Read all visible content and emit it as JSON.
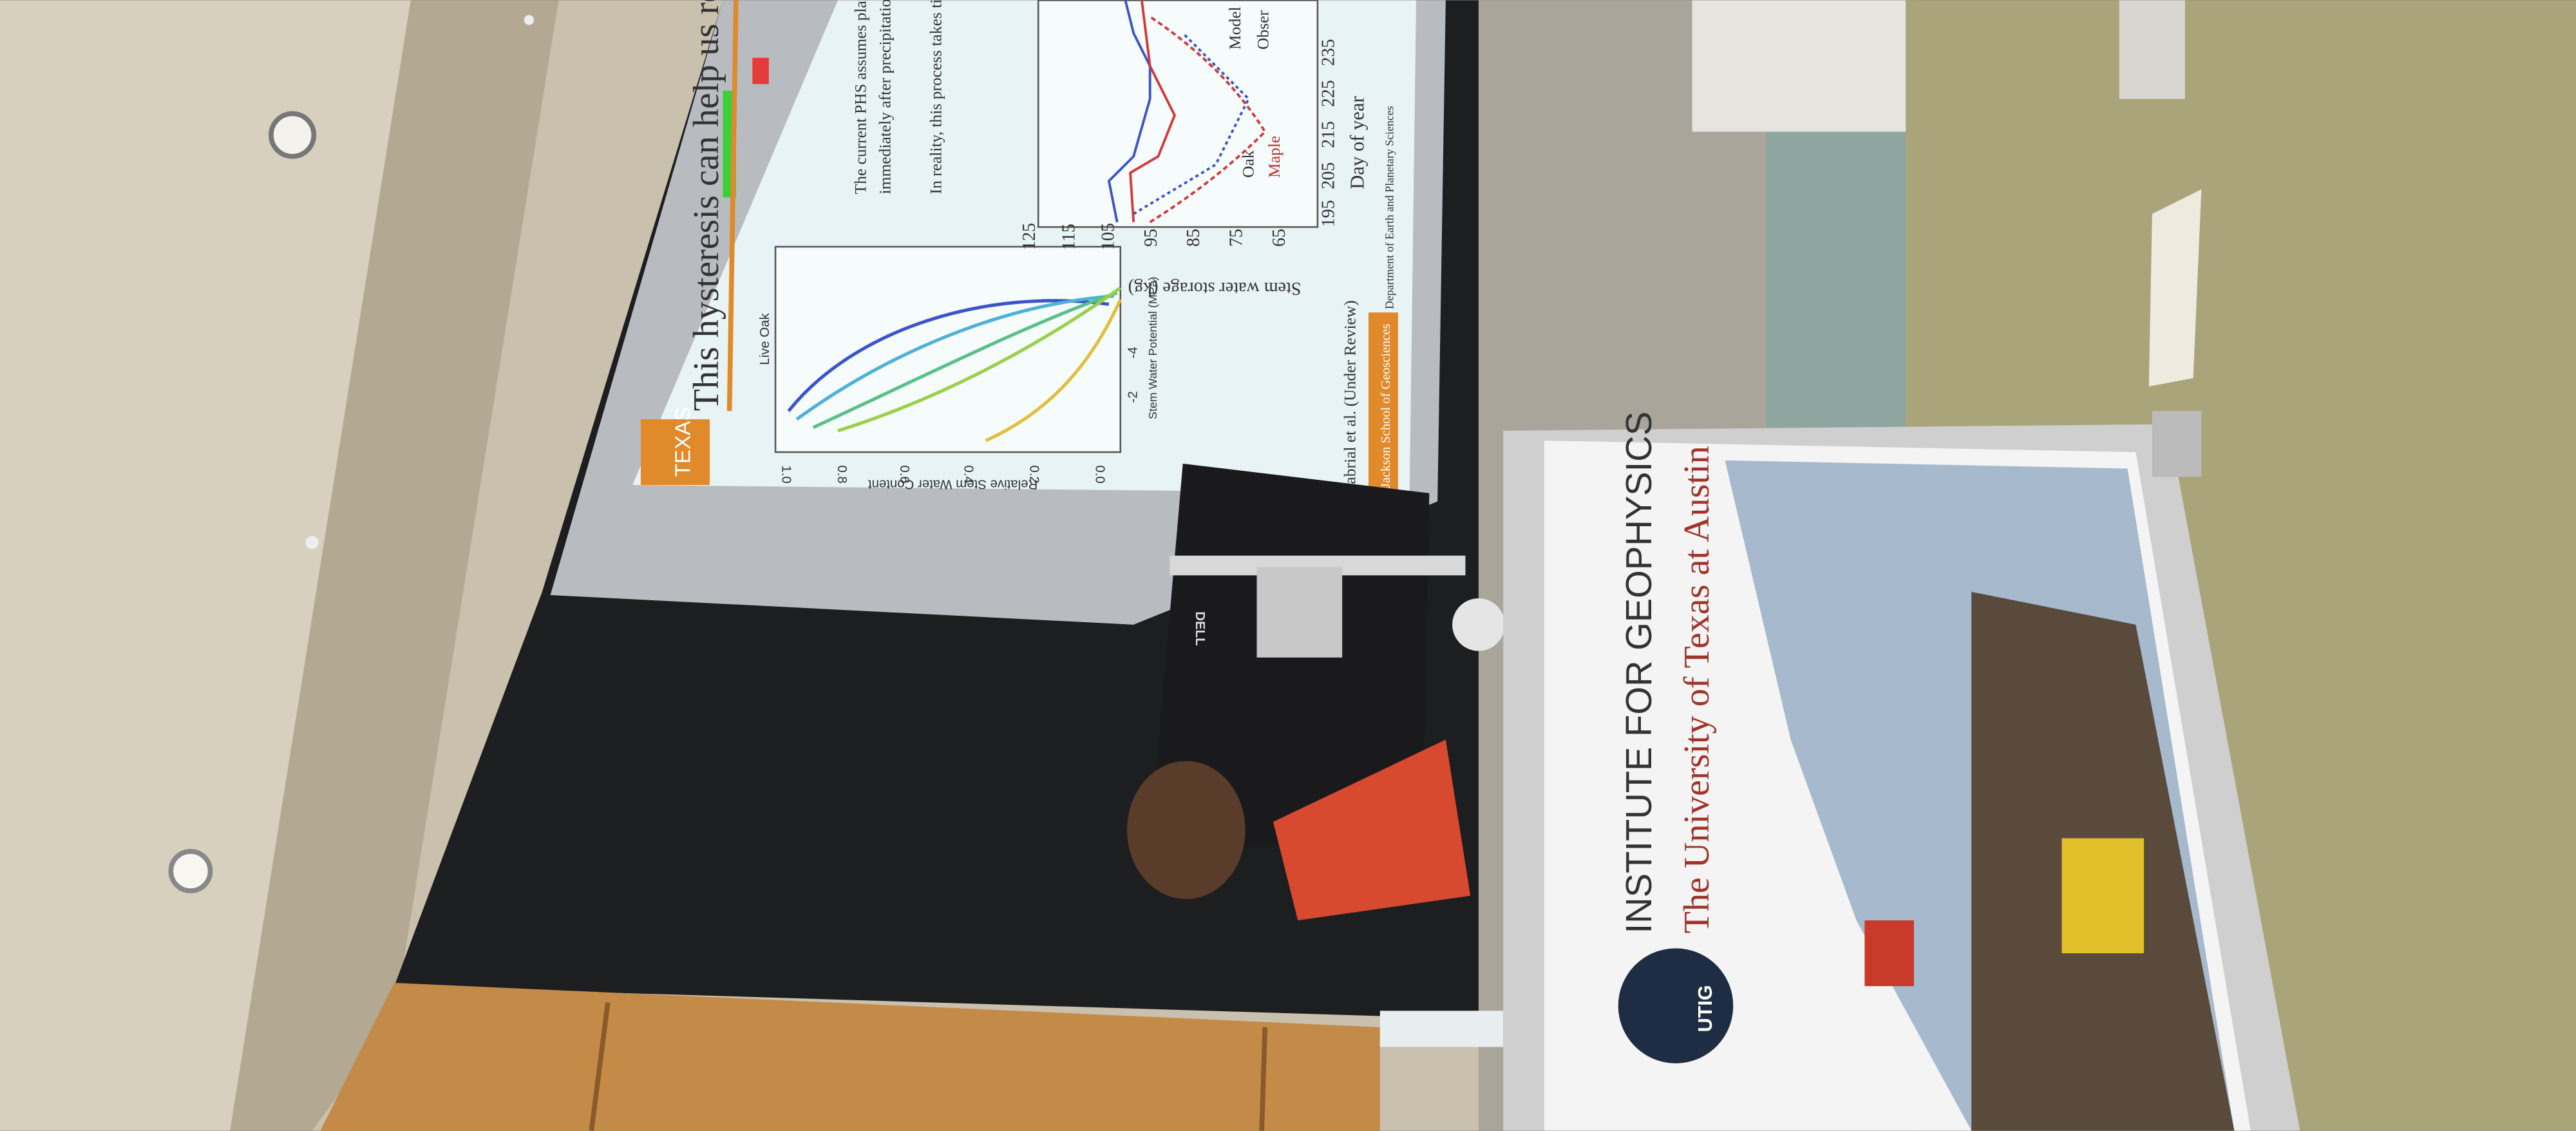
{
  "slide": {
    "title": "This hysteresis can help us resolve drought resp",
    "badge": "TEXAS",
    "bullets": [
      "The current PHS assumes plants refill",
      "immediately after precipitation.",
      "In reality, this process takes time."
    ],
    "left_plot": {
      "title": "Live Oak",
      "ylabel": "Relative Stem Water Content",
      "xlabel": "Stem Water Potential (MPa)",
      "yticks": [
        "1.0",
        "0.8",
        "0.6",
        "0.4",
        "0.2",
        "0.0"
      ],
      "xticks": [
        "-2",
        "-4"
      ]
    },
    "right_plot": {
      "ylabel": "Stem water storage (kg)",
      "yticks": [
        "125",
        "115",
        "105",
        "95",
        "85",
        "75",
        "65"
      ],
      "xlabel": "Day of year",
      "xticks": [
        "195",
        "205",
        "215",
        "225",
        "235"
      ],
      "legend": [
        "Oak",
        "Maple",
        "Model",
        "Obser"
      ]
    },
    "citation": "Sabrial et al. (Under Review)",
    "footer": [
      "Jackson School of Geosciences",
      "Department of Earth and Planetary Sciences"
    ]
  },
  "monitor": {
    "brand": "DELL"
  },
  "podium": {
    "line1": "INSTITUTE FOR GEOPHYSICS",
    "line2": "The University of Texas at Austin",
    "logo": "UTIG"
  }
}
